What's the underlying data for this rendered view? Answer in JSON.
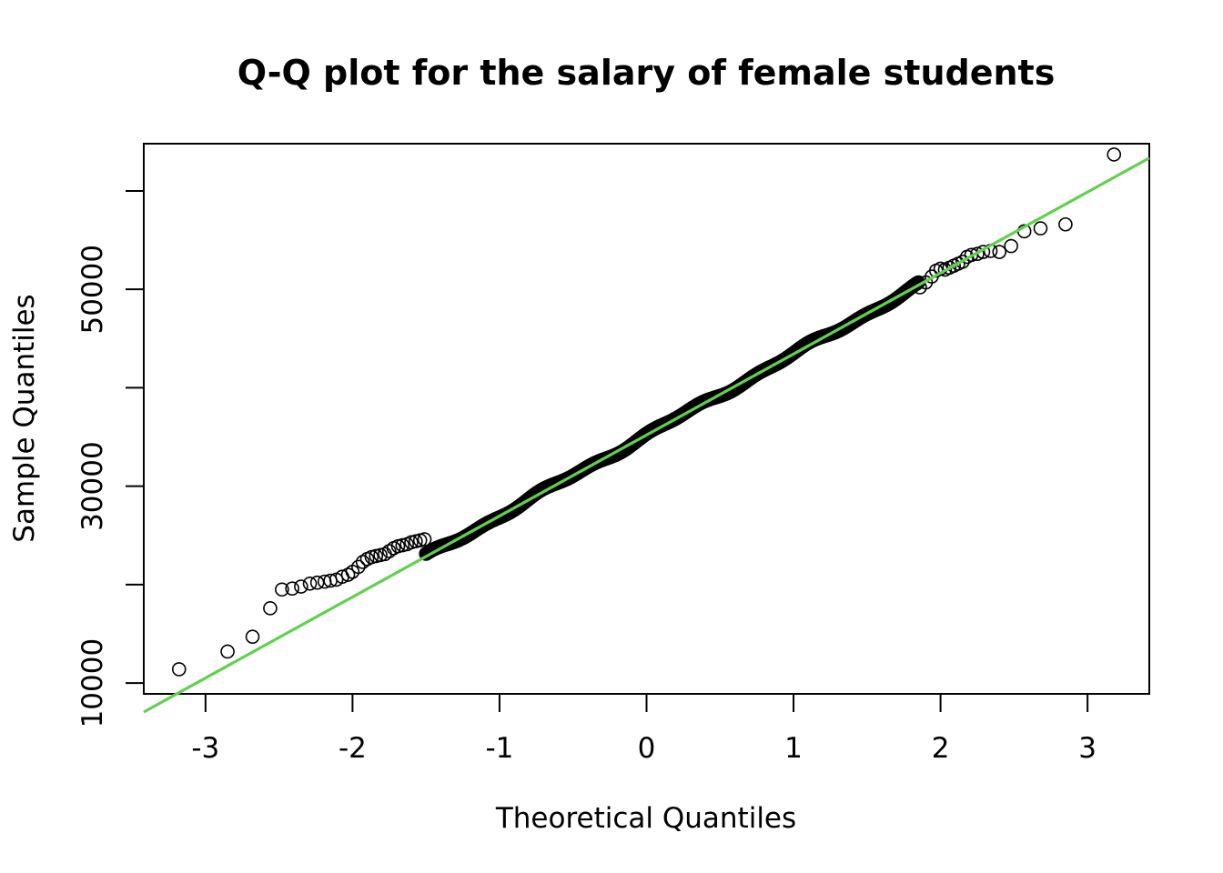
{
  "chart_data": {
    "type": "scatter",
    "title": "Q-Q plot for the salary of female students",
    "xlabel": "Theoretical Quantiles",
    "ylabel": "Sample Quantiles",
    "xlim": [
      -3.42,
      3.42
    ],
    "ylim": [
      8900,
      64800
    ],
    "x_ticks": [
      -3,
      -2,
      -1,
      0,
      1,
      2,
      3
    ],
    "y_ticks": [
      10000,
      20000,
      30000,
      40000,
      50000,
      60000
    ],
    "x_tick_labels": [
      "-3",
      "-2",
      "-1",
      "0",
      "1",
      "2",
      "3"
    ],
    "y_tick_labels": [
      "10000",
      "",
      "30000",
      "",
      "50000",
      ""
    ],
    "grid": false,
    "reference_line": {
      "intercept": 35200,
      "slope": 8230,
      "color": "#61d04f"
    },
    "marker": "open-circle",
    "series": [
      {
        "x": [
          -3.18,
          -2.85,
          -2.68,
          -2.56,
          -2.48,
          -2.41,
          -2.35,
          -2.29,
          -2.24,
          -2.19,
          -2.15,
          -2.11,
          -2.07,
          -2.03,
          -2.0,
          -1.96,
          -1.93,
          -1.9,
          -1.87,
          -1.84,
          -1.81,
          -1.78,
          -1.75,
          -1.72,
          -1.69,
          -1.66,
          -1.63,
          -1.6,
          -1.57,
          -1.54,
          -1.51
        ],
        "y": [
          11400,
          13200,
          14700,
          17600,
          19500,
          19600,
          19800,
          20100,
          20200,
          20300,
          20400,
          20500,
          20800,
          21000,
          21300,
          21800,
          22300,
          22600,
          22800,
          22900,
          23000,
          23100,
          23400,
          23700,
          23900,
          24000,
          24100,
          24300,
          24400,
          24500,
          24600
        ]
      },
      {
        "x": [
          1.86,
          1.9,
          1.94,
          1.97,
          2.0,
          2.03,
          2.06,
          2.09,
          2.12,
          2.15,
          2.18,
          2.21,
          2.25,
          2.29,
          2.34,
          2.4,
          2.48,
          2.57,
          2.68,
          2.85,
          3.18
        ],
        "y": [
          50200,
          50700,
          51300,
          51900,
          52100,
          52000,
          52200,
          52400,
          52600,
          52800,
          53300,
          53500,
          53600,
          53800,
          53900,
          53800,
          54400,
          55900,
          56200,
          56600,
          63700
        ]
      }
    ]
  }
}
